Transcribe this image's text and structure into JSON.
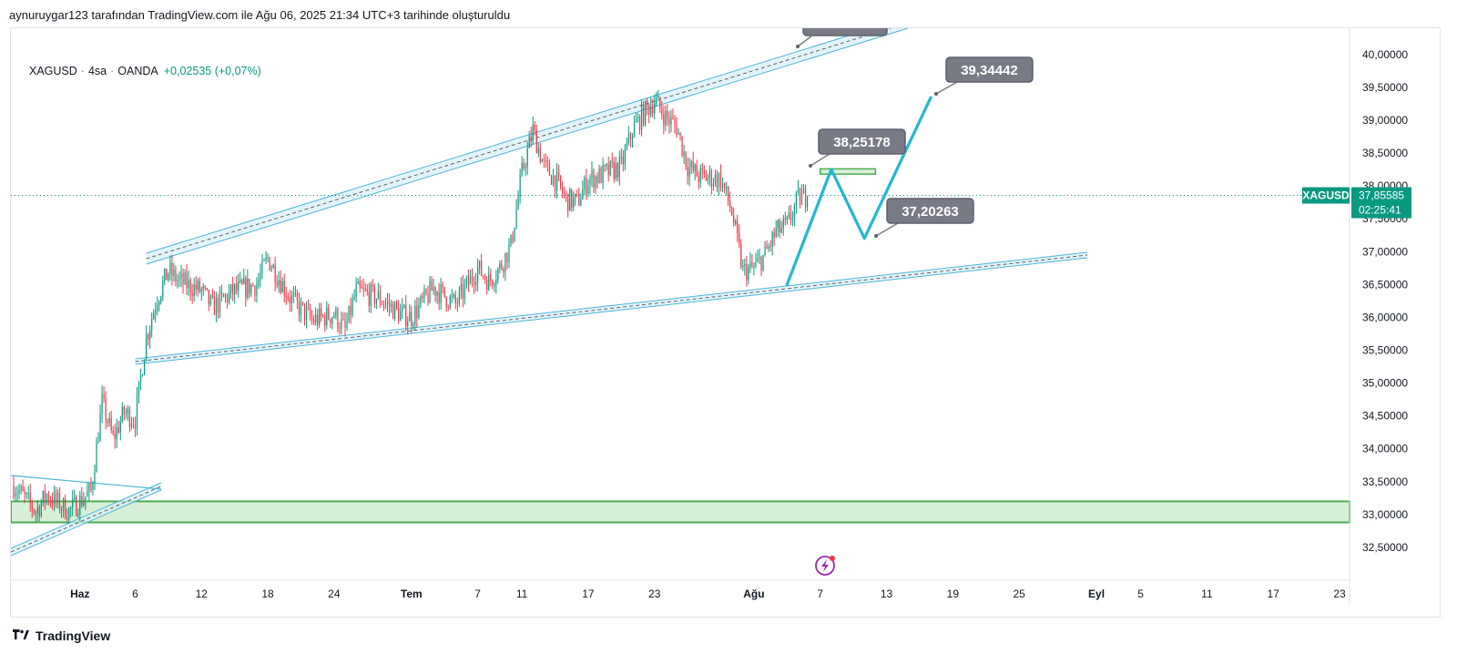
{
  "header": {
    "caption": "aynuruygar123 tarafından TradingView.com ile Ağu 06, 2025 21:34 UTC+3 tarihinde oluşturuldu"
  },
  "legend": {
    "symbol": "XAGUSD",
    "interval": "4sa",
    "source": "OANDA",
    "change": "+0,02535 (+0,07%)"
  },
  "brand": {
    "name": "TradingView"
  },
  "colors": {
    "up": "#089981",
    "down": "#f23645",
    "channel": "#4db6d6",
    "channel_fill": "#d7eff6",
    "zone_line": "#4caf50",
    "zone_fill": "#d7f0d7",
    "projection": "#22b8d0",
    "annotation_bg": "#787b86",
    "price_tag": "#089981"
  },
  "price_tag": {
    "symbol": "XAGUSD",
    "price": "37,85585",
    "countdown": "02:25:41"
  },
  "chart_data": {
    "type": "candlestick",
    "symbol": "XAGUSD",
    "interval": "4sa",
    "ylim": [
      32.0,
      40.4
    ],
    "yticks": [
      {
        "value": 40.0,
        "label": "40,00000"
      },
      {
        "value": 39.5,
        "label": "39,50000"
      },
      {
        "value": 39.0,
        "label": "39,00000"
      },
      {
        "value": 38.5,
        "label": "38,50000"
      },
      {
        "value": 38.0,
        "label": "38,00000"
      },
      {
        "value": 37.5,
        "label": "37,50000"
      },
      {
        "value": 37.0,
        "label": "37,00000"
      },
      {
        "value": 36.5,
        "label": "36,50000"
      },
      {
        "value": 36.0,
        "label": "36,00000"
      },
      {
        "value": 35.5,
        "label": "35,50000"
      },
      {
        "value": 35.0,
        "label": "35,00000"
      },
      {
        "value": 34.5,
        "label": "34,50000"
      },
      {
        "value": 34.0,
        "label": "34,00000"
      },
      {
        "value": 33.5,
        "label": "33,50000"
      },
      {
        "value": 33.0,
        "label": "33,00000"
      },
      {
        "value": 32.5,
        "label": "32,50000"
      }
    ],
    "xlim": [
      "2025-05-26",
      "2025-09-23"
    ],
    "xticks": [
      {
        "date": "2025-06-01",
        "label": "Haz",
        "bold": true
      },
      {
        "date": "2025-06-06",
        "label": "6"
      },
      {
        "date": "2025-06-12",
        "label": "12"
      },
      {
        "date": "2025-06-18",
        "label": "18"
      },
      {
        "date": "2025-06-24",
        "label": "24"
      },
      {
        "date": "2025-07-01",
        "label": "Tem",
        "bold": true
      },
      {
        "date": "2025-07-07",
        "label": "7"
      },
      {
        "date": "2025-07-11",
        "label": "11"
      },
      {
        "date": "2025-07-17",
        "label": "17"
      },
      {
        "date": "2025-07-23",
        "label": "23"
      },
      {
        "date": "2025-08-01",
        "label": "Ağu",
        "bold": true
      },
      {
        "date": "2025-08-07",
        "label": "7"
      },
      {
        "date": "2025-08-13",
        "label": "13"
      },
      {
        "date": "2025-08-19",
        "label": "19"
      },
      {
        "date": "2025-08-25",
        "label": "25"
      },
      {
        "date": "2025-09-01",
        "label": "Eyl",
        "bold": true
      },
      {
        "date": "2025-09-05",
        "label": "5"
      },
      {
        "date": "2025-09-11",
        "label": "11"
      },
      {
        "date": "2025-09-17",
        "label": "17"
      },
      {
        "date": "2025-09-23",
        "label": "23"
      }
    ],
    "last_price": 37.85585,
    "series_path": [
      [
        "2025-05-26",
        33.45
      ],
      [
        "2025-05-28",
        33.05
      ],
      [
        "2025-05-29",
        33.3
      ],
      [
        "2025-05-31",
        33.05
      ],
      [
        "2025-06-02",
        33.35
      ],
      [
        "2025-06-03",
        34.7
      ],
      [
        "2025-06-04",
        34.15
      ],
      [
        "2025-06-05",
        34.55
      ],
      [
        "2025-06-06",
        34.45
      ],
      [
        "2025-06-07",
        35.7
      ],
      [
        "2025-06-08",
        36.3
      ],
      [
        "2025-06-09",
        36.7
      ],
      [
        "2025-06-10",
        36.55
      ],
      [
        "2025-06-12",
        36.4
      ],
      [
        "2025-06-13",
        36.15
      ],
      [
        "2025-06-15",
        36.4
      ],
      [
        "2025-06-17",
        36.5
      ],
      [
        "2025-06-18",
        36.9
      ],
      [
        "2025-06-19",
        36.6
      ],
      [
        "2025-06-20",
        36.3
      ],
      [
        "2025-06-22",
        35.95
      ],
      [
        "2025-06-24",
        36.05
      ],
      [
        "2025-06-25",
        35.8
      ],
      [
        "2025-06-26",
        36.4
      ],
      [
        "2025-06-28",
        36.3
      ],
      [
        "2025-06-30",
        36.05
      ],
      [
        "2025-07-01",
        36.0
      ],
      [
        "2025-07-03",
        36.45
      ],
      [
        "2025-07-05",
        36.2
      ],
      [
        "2025-07-07",
        36.75
      ],
      [
        "2025-07-08",
        36.55
      ],
      [
        "2025-07-09",
        36.75
      ],
      [
        "2025-07-10",
        37.1
      ],
      [
        "2025-07-11",
        38.2
      ],
      [
        "2025-07-12",
        38.85
      ],
      [
        "2025-07-13",
        38.3
      ],
      [
        "2025-07-14",
        38.1
      ],
      [
        "2025-07-15",
        37.8
      ],
      [
        "2025-07-16",
        37.75
      ],
      [
        "2025-07-17",
        38.1
      ],
      [
        "2025-07-18",
        38.15
      ],
      [
        "2025-07-20",
        38.3
      ],
      [
        "2025-07-21",
        38.85
      ],
      [
        "2025-07-22",
        39.1
      ],
      [
        "2025-07-23",
        39.3
      ],
      [
        "2025-07-24",
        39.05
      ],
      [
        "2025-07-25",
        38.9
      ],
      [
        "2025-07-26",
        38.3
      ],
      [
        "2025-07-27",
        38.15
      ],
      [
        "2025-07-29",
        38.1
      ],
      [
        "2025-07-30",
        37.6
      ],
      [
        "2025-07-31",
        36.7
      ],
      [
        "2025-08-01",
        36.75
      ],
      [
        "2025-08-02",
        36.95
      ],
      [
        "2025-08-03",
        37.3
      ],
      [
        "2025-08-04",
        37.4
      ],
      [
        "2025-08-05",
        37.8
      ],
      [
        "2025-08-06",
        37.86
      ]
    ],
    "zones": [
      {
        "type": "demand",
        "from": 32.88,
        "to": 33.2
      },
      {
        "type": "resistance",
        "from": 38.18,
        "to": 38.26,
        "x1": "2025-08-07",
        "x2": "2025-08-12"
      }
    ],
    "projection": [
      [
        "2025-08-04",
        36.5
      ],
      [
        "2025-08-08",
        38.25178
      ],
      [
        "2025-08-11",
        37.20263
      ],
      [
        "2025-08-17",
        39.34442
      ]
    ],
    "annotations": [
      {
        "label": "38,25178",
        "value": 38.25178
      },
      {
        "label": "37,20263",
        "value": 37.20263
      },
      {
        "label": "39,34442",
        "value": 39.34442
      }
    ]
  }
}
